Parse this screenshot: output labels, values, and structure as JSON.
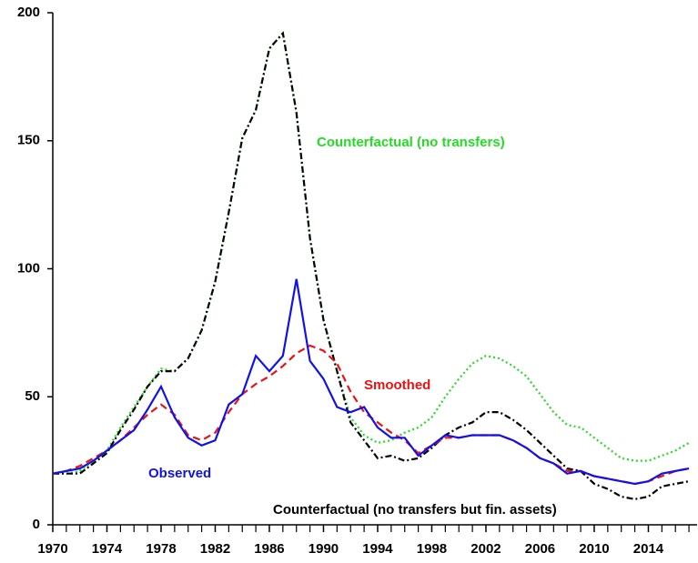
{
  "chart_data": {
    "type": "line",
    "x": [
      1970,
      1971,
      1972,
      1973,
      1974,
      1975,
      1976,
      1977,
      1978,
      1979,
      1980,
      1981,
      1982,
      1983,
      1984,
      1985,
      1986,
      1987,
      1988,
      1989,
      1990,
      1991,
      1992,
      1993,
      1994,
      1995,
      1996,
      1997,
      1998,
      1999,
      2000,
      2001,
      2002,
      2003,
      2004,
      2005,
      2006,
      2007,
      2008,
      2009,
      2010,
      2011,
      2012,
      2013,
      2014,
      2015,
      2016,
      2017
    ],
    "series": [
      {
        "name": "Counterfactual (no transfers)",
        "color": "#22dd22",
        "style": "dotted",
        "values": [
          20,
          20,
          21,
          25,
          29,
          38,
          46,
          54,
          61,
          60,
          65,
          76,
          95,
          122,
          151,
          162,
          186,
          192,
          161,
          112,
          80,
          60,
          42,
          35,
          32,
          33,
          36,
          38,
          42,
          50,
          57,
          63,
          66,
          65,
          62,
          58,
          51,
          44,
          39,
          38,
          34,
          30,
          26,
          25,
          25,
          27,
          29,
          32
        ]
      },
      {
        "name": "Counterfactual (no transfers but fin. assets)",
        "color": "#000000",
        "style": "dashdot",
        "values": [
          20,
          20,
          20,
          24,
          28,
          37,
          45,
          54,
          60,
          60,
          65,
          76,
          95,
          122,
          151,
          162,
          186,
          192,
          161,
          112,
          80,
          60,
          40,
          33,
          26,
          27,
          25,
          26,
          30,
          35,
          38,
          40,
          44,
          44,
          41,
          37,
          32,
          27,
          22,
          21,
          16,
          14,
          11,
          10,
          11,
          15,
          16,
          17
        ]
      },
      {
        "name": "Smoothed",
        "color": "#ee1111",
        "style": "dashed",
        "values": [
          20,
          21,
          23,
          26,
          29,
          33,
          38,
          43,
          47,
          43,
          35,
          33,
          36,
          44,
          51,
          55,
          58,
          62,
          67,
          70,
          68,
          63,
          52,
          44,
          40,
          36,
          33,
          28,
          31,
          34,
          34,
          35,
          35,
          35,
          33,
          30,
          26,
          24,
          21,
          21,
          19,
          18,
          17,
          16,
          17,
          19,
          21,
          22
        ]
      },
      {
        "name": "Observed",
        "color": "#1111ee",
        "style": "solid",
        "values": [
          20,
          21,
          22,
          25,
          29,
          33,
          37,
          45,
          54,
          42,
          34,
          31,
          33,
          47,
          51,
          66,
          60,
          66,
          96,
          64,
          57,
          46,
          44,
          46,
          38,
          34,
          34,
          27,
          31,
          35,
          34,
          35,
          35,
          35,
          33,
          30,
          26,
          24,
          20,
          21,
          19,
          18,
          17,
          16,
          17,
          20,
          21,
          22
        ]
      }
    ],
    "xlim": [
      1970,
      2017.6
    ],
    "xticks": [
      1970,
      1974,
      1978,
      1982,
      1986,
      1990,
      1994,
      1998,
      2002,
      2006,
      2010,
      2014
    ],
    "xminorticks": [
      1971,
      1972,
      1973,
      1975,
      1976,
      1977,
      1979,
      1980,
      1981,
      1983,
      1984,
      1985,
      1987,
      1988,
      1989,
      1991,
      1992,
      1993,
      1995,
      1996,
      1997,
      1999,
      2000,
      2001,
      2003,
      2004,
      2005,
      2007,
      2008,
      2009,
      2011,
      2012,
      2013,
      2015,
      2016,
      2017
    ],
    "ylim": [
      0,
      200
    ],
    "yticks": [
      0,
      50,
      100,
      150,
      200
    ]
  }
}
